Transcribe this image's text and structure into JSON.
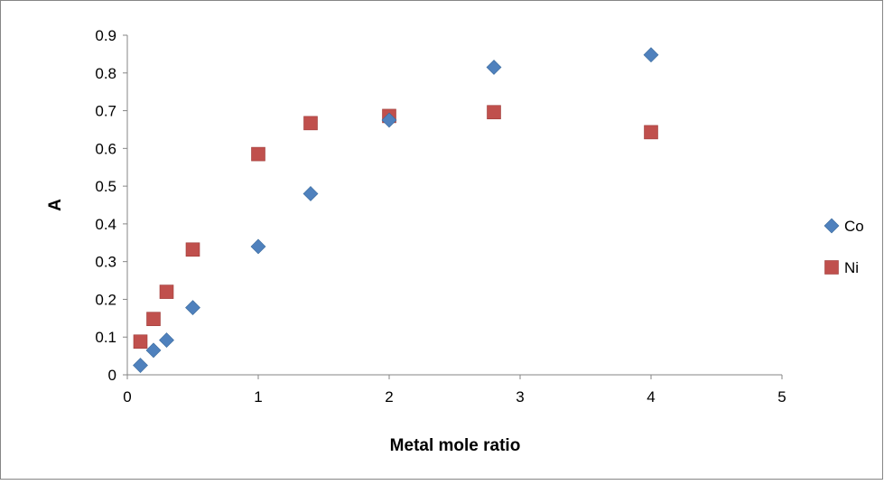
{
  "chart_data": {
    "type": "scatter",
    "title": "",
    "xlabel": "Metal mole ratio",
    "ylabel": "A",
    "xlim": [
      0,
      5
    ],
    "ylim": [
      0,
      0.9
    ],
    "x_ticks": [
      "0",
      "1",
      "2",
      "3",
      "4",
      "5"
    ],
    "y_ticks": [
      "0",
      "0.1",
      "0.2",
      "0.3",
      "0.4",
      "0.5",
      "0.6",
      "0.7",
      "0.8",
      "0.9"
    ],
    "grid": false,
    "legend_position": "right",
    "series": [
      {
        "name": "Co",
        "marker": "diamond",
        "color": "#4F81BD",
        "points": [
          {
            "x": 0.1,
            "y": 0.025
          },
          {
            "x": 0.2,
            "y": 0.065
          },
          {
            "x": 0.3,
            "y": 0.092
          },
          {
            "x": 0.5,
            "y": 0.178
          },
          {
            "x": 1.0,
            "y": 0.34
          },
          {
            "x": 1.4,
            "y": 0.48
          },
          {
            "x": 2.0,
            "y": 0.675
          },
          {
            "x": 2.8,
            "y": 0.815
          },
          {
            "x": 4.0,
            "y": 0.848
          }
        ]
      },
      {
        "name": "Ni",
        "marker": "square",
        "color": "#C0504D",
        "points": [
          {
            "x": 0.1,
            "y": 0.088
          },
          {
            "x": 0.2,
            "y": 0.148
          },
          {
            "x": 0.3,
            "y": 0.22
          },
          {
            "x": 0.5,
            "y": 0.332
          },
          {
            "x": 1.0,
            "y": 0.585
          },
          {
            "x": 1.4,
            "y": 0.667
          },
          {
            "x": 2.0,
            "y": 0.686
          },
          {
            "x": 2.8,
            "y": 0.696
          },
          {
            "x": 4.0,
            "y": 0.643
          }
        ]
      }
    ]
  }
}
